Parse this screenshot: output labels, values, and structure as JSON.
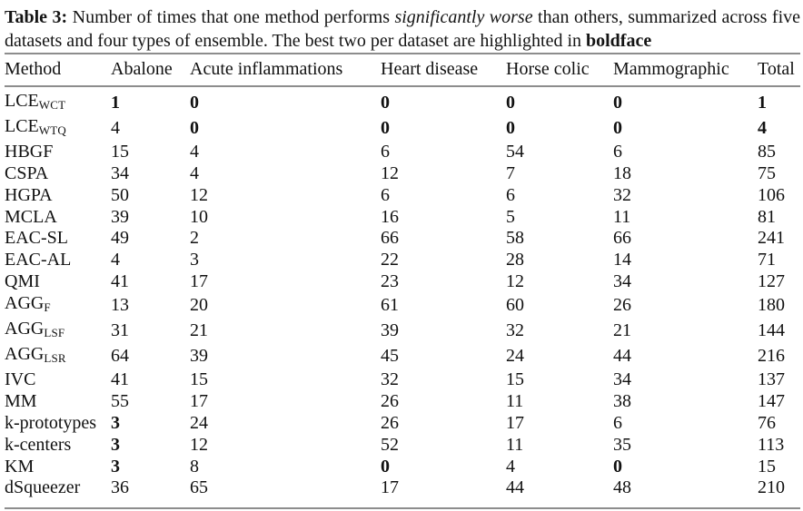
{
  "caption": {
    "label": "Table 3:",
    "text_before_italic": "Number of times that one method performs",
    "italic": "significantly worse",
    "text_after_italic": "than others, summarized across five datasets and four types of ensemble. The best two per dataset are highlighted in",
    "bold_word": "boldface"
  },
  "table": {
    "columns": [
      "Method",
      "Abalone",
      "Acute inflammations",
      "Heart disease",
      "Horse colic",
      "Mammographic",
      "Total"
    ],
    "rows": [
      {
        "method": "LCE",
        "sub": "WCT",
        "values": [
          1,
          0,
          0,
          0,
          0,
          1
        ],
        "bold": [
          1,
          1,
          1,
          1,
          1,
          1
        ]
      },
      {
        "method": "LCE",
        "sub": "WTQ",
        "values": [
          4,
          0,
          0,
          0,
          0,
          4
        ],
        "bold": [
          0,
          1,
          1,
          1,
          1,
          1
        ]
      },
      {
        "method": "HBGF",
        "sub": "",
        "values": [
          15,
          4,
          6,
          54,
          6,
          85
        ],
        "bold": [
          0,
          0,
          0,
          0,
          0,
          0
        ]
      },
      {
        "method": "CSPA",
        "sub": "",
        "values": [
          34,
          4,
          12,
          7,
          18,
          75
        ],
        "bold": [
          0,
          0,
          0,
          0,
          0,
          0
        ]
      },
      {
        "method": "HGPA",
        "sub": "",
        "values": [
          50,
          12,
          6,
          6,
          32,
          106
        ],
        "bold": [
          0,
          0,
          0,
          0,
          0,
          0
        ]
      },
      {
        "method": "MCLA",
        "sub": "",
        "values": [
          39,
          10,
          16,
          5,
          11,
          81
        ],
        "bold": [
          0,
          0,
          0,
          0,
          0,
          0
        ]
      },
      {
        "method": "EAC-SL",
        "sub": "",
        "values": [
          49,
          2,
          66,
          58,
          66,
          241
        ],
        "bold": [
          0,
          0,
          0,
          0,
          0,
          0
        ]
      },
      {
        "method": "EAC-AL",
        "sub": "",
        "values": [
          4,
          3,
          22,
          28,
          14,
          71
        ],
        "bold": [
          0,
          0,
          0,
          0,
          0,
          0
        ]
      },
      {
        "method": "QMI",
        "sub": "",
        "values": [
          41,
          17,
          23,
          12,
          34,
          127
        ],
        "bold": [
          0,
          0,
          0,
          0,
          0,
          0
        ]
      },
      {
        "method": "AGG",
        "sub": "F",
        "values": [
          13,
          20,
          61,
          60,
          26,
          180
        ],
        "bold": [
          0,
          0,
          0,
          0,
          0,
          0
        ]
      },
      {
        "method": "AGG",
        "sub": "LSF",
        "values": [
          31,
          21,
          39,
          32,
          21,
          144
        ],
        "bold": [
          0,
          0,
          0,
          0,
          0,
          0
        ]
      },
      {
        "method": "AGG",
        "sub": "LSR",
        "values": [
          64,
          39,
          45,
          24,
          44,
          216
        ],
        "bold": [
          0,
          0,
          0,
          0,
          0,
          0
        ]
      },
      {
        "method": "IVC",
        "sub": "",
        "values": [
          41,
          15,
          32,
          15,
          34,
          137
        ],
        "bold": [
          0,
          0,
          0,
          0,
          0,
          0
        ]
      },
      {
        "method": "MM",
        "sub": "",
        "values": [
          55,
          17,
          26,
          11,
          38,
          147
        ],
        "bold": [
          0,
          0,
          0,
          0,
          0,
          0
        ]
      },
      {
        "method": "k-prototypes",
        "sub": "",
        "values": [
          3,
          24,
          26,
          17,
          6,
          76
        ],
        "bold": [
          1,
          0,
          0,
          0,
          0,
          0
        ]
      },
      {
        "method": "k-centers",
        "sub": "",
        "values": [
          3,
          12,
          52,
          11,
          35,
          113
        ],
        "bold": [
          1,
          0,
          0,
          0,
          0,
          0
        ]
      },
      {
        "method": "KM",
        "sub": "",
        "values": [
          3,
          8,
          0,
          4,
          0,
          15
        ],
        "bold": [
          1,
          0,
          1,
          0,
          1,
          0
        ]
      },
      {
        "method": "dSqueezer",
        "sub": "",
        "values": [
          36,
          65,
          17,
          44,
          48,
          210
        ],
        "bold": [
          0,
          0,
          0,
          0,
          0,
          0
        ]
      }
    ]
  }
}
